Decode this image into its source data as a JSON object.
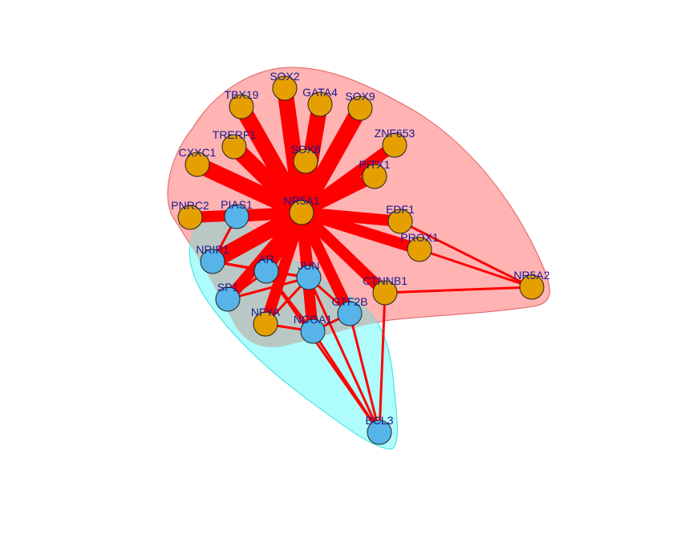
{
  "colors": {
    "background": "#ffffff",
    "edge": "#ff0000",
    "group_pink_fill": "#ffb3b3",
    "group_pink_stroke": "#e06060",
    "group_cyan_fill": "#aefcfc",
    "group_cyan_stroke": "#33e0e0",
    "overlap_fill": "#b9c8c4",
    "node_orange": "#e69f00",
    "node_blue": "#56b4e9",
    "label": "#1a1a8c"
  },
  "nodes": [
    {
      "id": "NR5A1",
      "label": "NR5A1",
      "color": "orange"
    },
    {
      "id": "SOX2",
      "label": "SOX2",
      "color": "orange"
    },
    {
      "id": "TBX19",
      "label": "TBX19",
      "color": "orange"
    },
    {
      "id": "GATA4",
      "label": "GATA4",
      "color": "orange"
    },
    {
      "id": "SOX9",
      "label": "SOX9",
      "color": "orange"
    },
    {
      "id": "TRERF1",
      "label": "TRERF1",
      "color": "orange"
    },
    {
      "id": "ZNF653",
      "label": "ZNF653",
      "color": "orange"
    },
    {
      "id": "CXXC1",
      "label": "CXXC1",
      "color": "orange"
    },
    {
      "id": "SOX8",
      "label": "SOX8",
      "color": "orange"
    },
    {
      "id": "PITX1",
      "label": "PITX1",
      "color": "orange"
    },
    {
      "id": "PNRC2",
      "label": "PNRC2",
      "color": "orange"
    },
    {
      "id": "PIAS1",
      "label": "PIAS1",
      "color": "blue"
    },
    {
      "id": "EDF1",
      "label": "EDF1",
      "color": "orange"
    },
    {
      "id": "PROX1",
      "label": "PROX1",
      "color": "orange"
    },
    {
      "id": "NRIP1",
      "label": "NRIP1",
      "color": "blue"
    },
    {
      "id": "AR",
      "label": "AR",
      "color": "blue"
    },
    {
      "id": "JUN",
      "label": "JUN",
      "color": "blue"
    },
    {
      "id": "NR5A2",
      "label": "NR5A2",
      "color": "orange"
    },
    {
      "id": "CTNNB1",
      "label": "CTNNB1",
      "color": "orange"
    },
    {
      "id": "SP1",
      "label": "SP1",
      "color": "blue"
    },
    {
      "id": "GTF2B",
      "label": "GTF2B",
      "color": "blue"
    },
    {
      "id": "NFYA",
      "label": "NFYA",
      "color": "orange"
    },
    {
      "id": "NCOA1",
      "label": "NCOA1",
      "color": "blue"
    },
    {
      "id": "BCL3",
      "label": "BCL3",
      "color": "blue"
    }
  ],
  "edges": [
    {
      "source": "NR5A1",
      "target": "SOX2",
      "weight": 5
    },
    {
      "source": "NR5A1",
      "target": "TBX19",
      "weight": 5
    },
    {
      "source": "NR5A1",
      "target": "GATA4",
      "weight": 5
    },
    {
      "source": "NR5A1",
      "target": "SOX9",
      "weight": 5
    },
    {
      "source": "NR5A1",
      "target": "TRERF1",
      "weight": 5
    },
    {
      "source": "NR5A1",
      "target": "ZNF653",
      "weight": 4
    },
    {
      "source": "NR5A1",
      "target": "CXXC1",
      "weight": 5
    },
    {
      "source": "NR5A1",
      "target": "SOX8",
      "weight": 4
    },
    {
      "source": "NR5A1",
      "target": "PITX1",
      "weight": 4
    },
    {
      "source": "NR5A1",
      "target": "PNRC2",
      "weight": 4
    },
    {
      "source": "NR5A1",
      "target": "PIAS1",
      "weight": 4
    },
    {
      "source": "NR5A1",
      "target": "EDF1",
      "weight": 4
    },
    {
      "source": "NR5A1",
      "target": "PROX1",
      "weight": 4
    },
    {
      "source": "NR5A1",
      "target": "NRIP1",
      "weight": 5
    },
    {
      "source": "NR5A1",
      "target": "AR",
      "weight": 4
    },
    {
      "source": "NR5A1",
      "target": "JUN",
      "weight": 4
    },
    {
      "source": "NR5A1",
      "target": "CTNNB1",
      "weight": 4
    },
    {
      "source": "NR5A1",
      "target": "SP1",
      "weight": 4
    },
    {
      "source": "NR5A1",
      "target": "GTF2B",
      "weight": 4
    },
    {
      "source": "NR5A1",
      "target": "NFYA",
      "weight": 4
    },
    {
      "source": "NR5A1",
      "target": "NCOA1",
      "weight": 4
    },
    {
      "source": "PNRC2",
      "target": "PIAS1",
      "weight": 1
    },
    {
      "source": "PIAS1",
      "target": "NRIP1",
      "weight": 1
    },
    {
      "source": "NRIP1",
      "target": "AR",
      "weight": 1
    },
    {
      "source": "NRIP1",
      "target": "JUN",
      "weight": 1
    },
    {
      "source": "AR",
      "target": "JUN",
      "weight": 1
    },
    {
      "source": "AR",
      "target": "SP1",
      "weight": 1
    },
    {
      "source": "AR",
      "target": "NCOA1",
      "weight": 1
    },
    {
      "source": "SP1",
      "target": "JUN",
      "weight": 1
    },
    {
      "source": "JUN",
      "target": "NFYA",
      "weight": 1
    },
    {
      "source": "JUN",
      "target": "NCOA1",
      "weight": 1
    },
    {
      "source": "JUN",
      "target": "GTF2B",
      "weight": 1
    },
    {
      "source": "JUN",
      "target": "BCL3",
      "weight": 1
    },
    {
      "source": "NCOA1",
      "target": "BCL3",
      "weight": 1
    },
    {
      "source": "GTF2B",
      "target": "BCL3",
      "weight": 1
    },
    {
      "source": "CTNNB1",
      "target": "BCL3",
      "weight": 1
    },
    {
      "source": "AR",
      "target": "BCL3",
      "weight": 1
    },
    {
      "source": "PROX1",
      "target": "NR5A2",
      "weight": 1
    },
    {
      "source": "EDF1",
      "target": "NR5A2",
      "weight": 1
    },
    {
      "source": "CTNNB1",
      "target": "NR5A2",
      "weight": 1
    },
    {
      "source": "NCOA1",
      "target": "GTF2B",
      "weight": 1
    },
    {
      "source": "NFYA",
      "target": "NCOA1",
      "weight": 1
    }
  ],
  "groups": [
    {
      "name": "pink-group",
      "color": "pink"
    },
    {
      "name": "cyan-group",
      "color": "cyan"
    }
  ]
}
